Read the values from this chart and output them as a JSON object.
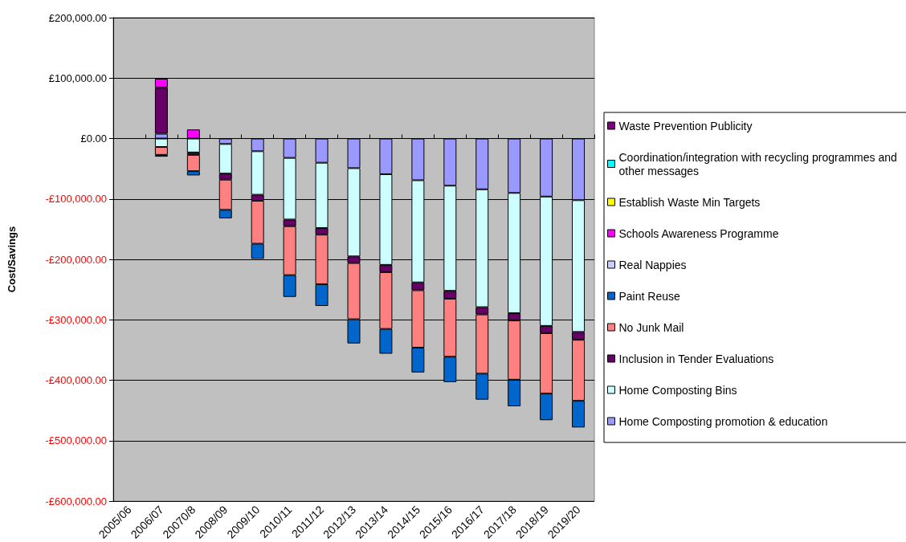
{
  "chart_data": {
    "type": "bar",
    "stacked": true,
    "ylabel": "Cost/Savings",
    "categories": [
      "2005/06",
      "2006/07",
      "20070/8",
      "2008/09",
      "2009/10",
      "2010/11",
      "2011/12",
      "2012/13",
      "2013/14",
      "2014/15",
      "2015/16",
      "2016/17",
      "2017/18",
      "2018/19",
      "2019/20"
    ],
    "series": [
      {
        "name": "Home Composting promotion & education",
        "color": "#9999ff",
        "values": [
          null,
          8000,
          null,
          -9000,
          -21000,
          -32000,
          -40000,
          -49000,
          -59000,
          -69000,
          -78000,
          -84000,
          -90000,
          -96000,
          -102000
        ]
      },
      {
        "name": "Home Composting Bins",
        "color": "#ccffff",
        "values": [
          null,
          -14000,
          -23000,
          -49000,
          -72000,
          -102000,
          -108000,
          -146000,
          -150000,
          -169000,
          -174000,
          -195000,
          -199000,
          -214000,
          -218000
        ]
      },
      {
        "name": "Inclusion in Tender Evaluations",
        "color": "#660066",
        "values": [
          null,
          76000,
          -4000,
          -10000,
          -10000,
          -11000,
          -11000,
          -11000,
          -12000,
          -13000,
          -13000,
          -12000,
          -12000,
          -12000,
          -13000
        ]
      },
      {
        "name": "No Junk Mail",
        "color": "#ff8080",
        "values": [
          null,
          -13000,
          -27000,
          -50000,
          -71000,
          -81000,
          -82000,
          -93000,
          -94000,
          -95000,
          -96000,
          -98000,
          -98000,
          -100000,
          -101000
        ]
      },
      {
        "name": "Paint Reuse",
        "color": "#0066cc",
        "values": [
          null,
          -3000,
          -7000,
          -14000,
          -25000,
          -36000,
          -36000,
          -40000,
          -41000,
          -41000,
          -42000,
          -43000,
          -44000,
          -44000,
          -44000
        ]
      },
      {
        "name": "Real Nappies",
        "color": "#ccccff",
        "values": [
          null,
          null,
          null,
          null,
          null,
          null,
          null,
          null,
          null,
          null,
          null,
          null,
          null,
          null,
          null
        ]
      },
      {
        "name": "Schools Awareness Programme",
        "color": "#ff00ff",
        "values": [
          null,
          15000,
          15000,
          null,
          null,
          null,
          null,
          null,
          null,
          null,
          null,
          null,
          null,
          null,
          null
        ]
      },
      {
        "name": "Establish Waste Min Targets",
        "color": "#ffff00",
        "values": [
          null,
          null,
          null,
          null,
          null,
          null,
          null,
          null,
          null,
          null,
          null,
          null,
          null,
          null,
          null
        ]
      },
      {
        "name": "Coordination/integration with recycling programmes and other messages",
        "color": "#00ffff",
        "values": [
          null,
          null,
          null,
          null,
          null,
          null,
          null,
          null,
          null,
          null,
          null,
          null,
          null,
          null,
          null
        ]
      },
      {
        "name": "Waste Prevention Publicity",
        "color": "#800080",
        "values": [
          null,
          null,
          null,
          null,
          null,
          null,
          null,
          null,
          null,
          null,
          null,
          null,
          null,
          null,
          null
        ]
      }
    ],
    "ylim": [
      -600000,
      200000
    ],
    "yticks": [
      {
        "value": -600000,
        "label": "-£600,000.00"
      },
      {
        "value": -500000,
        "label": "-£500,000.00"
      },
      {
        "value": -400000,
        "label": "-£400,000.00"
      },
      {
        "value": -300000,
        "label": "-£300,000.00"
      },
      {
        "value": -200000,
        "label": "-£200,000.00"
      },
      {
        "value": -100000,
        "label": "-£100,000.00"
      },
      {
        "value": 0,
        "label": "£0.00"
      },
      {
        "value": 100000,
        "label": "£100,000.00"
      },
      {
        "value": 200000,
        "label": "£200,000.00"
      }
    ],
    "grid": "y",
    "legend": "right"
  }
}
